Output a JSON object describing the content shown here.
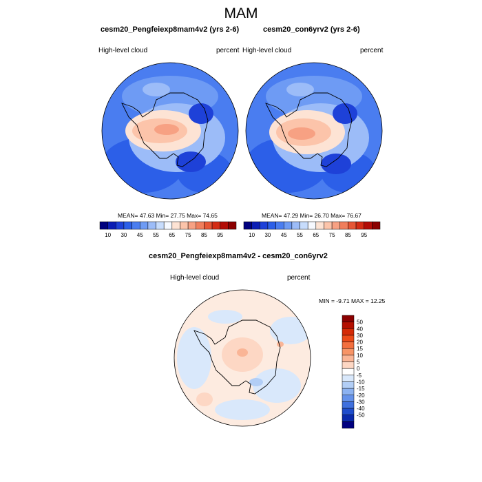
{
  "season": "MAM",
  "panels": [
    {
      "title": "cesm20_Pengfeiexp8mam4v2 (yrs 2-6)",
      "left_label": "High-level cloud",
      "right_label": "percent",
      "stats": "MEAN=  47.63  Min=  27.75  Max=  74.65"
    },
    {
      "title": "cesm20_con6yrv2 (yrs 2-6)",
      "left_label": "High-level cloud",
      "right_label": "percent",
      "stats": "MEAN=  47.29  Min=  26.70  Max=  76.67"
    }
  ],
  "abs_colorbar": {
    "colors": [
      "#00007e",
      "#0b1db4",
      "#1e41d8",
      "#2c5fe8",
      "#4a7df0",
      "#6e9bf4",
      "#9cbcf8",
      "#c7dcfc",
      "#f6f9ff",
      "#fde3d4",
      "#fcc4aa",
      "#f7a183",
      "#f07e5c",
      "#e65635",
      "#d42c14",
      "#b20c06",
      "#8b0000"
    ],
    "labels": [
      "10",
      "30",
      "45",
      "55",
      "65",
      "75",
      "85",
      "95"
    ]
  },
  "diff_panel": {
    "title": "cesm20_Pengfeiexp8mam4v2 - cesm20_con6yrv2",
    "left_label": "High-level cloud",
    "right_label": "percent",
    "minmax": "MIN =  -9.71 MAX =  12.25"
  },
  "diff_colorbar": {
    "colors": [
      "#8b0000",
      "#b40f00",
      "#d42a06",
      "#ec4a18",
      "#f36f3e",
      "#f79466",
      "#fab596",
      "#fdd7c4",
      "#ffffff",
      "#d9e8fb",
      "#b2cef6",
      "#8cb2f1",
      "#6592ea",
      "#3f70de",
      "#1f4dcc",
      "#0a2aac",
      "#000080"
    ],
    "labels": [
      "50",
      "40",
      "30",
      "20",
      "15",
      "10",
      "5",
      "0",
      "-5",
      "-10",
      "-15",
      "-20",
      "-30",
      "-40",
      "-50"
    ]
  }
}
